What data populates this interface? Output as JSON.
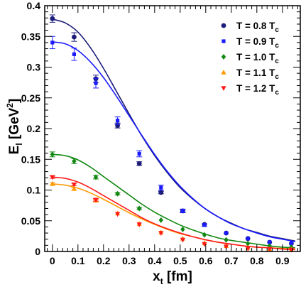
{
  "chart_data": {
    "type": "scatter",
    "xlabel": {
      "main": "x",
      "sub": "t",
      "unit": " [fm]"
    },
    "ylabel": {
      "main": "E",
      "sub": "l",
      "unit_pre": " [GeV",
      "unit_sup": "2",
      "unit_post": "]"
    },
    "xlim": [
      -0.03,
      0.97
    ],
    "ylim": [
      0,
      0.4
    ],
    "x_ticks": [
      "0",
      "0.1",
      "0.2",
      "0.3",
      "0.4",
      "0.5",
      "0.6",
      "0.7",
      "0.8",
      "0.9"
    ],
    "y_ticks": [
      "0",
      "0.05",
      "0.1",
      "0.15",
      "0.2",
      "0.25",
      "0.3",
      "0.35",
      "0.4"
    ],
    "grid": false,
    "legend_position": "top-right",
    "series": [
      {
        "name": {
          "main": "T = 0.8 T",
          "sub": "c"
        },
        "color": "#1c1c7a",
        "marker": "circle",
        "x": [
          0,
          0.085,
          0.17,
          0.255,
          0.34,
          0.425,
          0.51,
          0.595,
          0.68,
          0.765,
          0.85,
          0.935
        ],
        "y": [
          0.379,
          0.349,
          0.281,
          0.205,
          0.143,
          0.096,
          0.066,
          0.044,
          0.03,
          0.021,
          0.015,
          0.013
        ],
        "err": [
          0.006,
          0.007,
          0.006,
          0.004,
          0.003,
          0.002,
          0.002,
          0.001,
          0.001,
          0.001,
          0.001,
          0.001
        ],
        "fit": [
          0.378,
          0.372,
          0.357,
          0.331,
          0.298,
          0.261,
          0.224,
          0.188,
          0.156,
          0.128,
          0.104,
          0.085,
          0.069,
          0.056,
          0.046,
          0.037,
          0.031,
          0.025,
          0.021,
          0.017
        ]
      },
      {
        "name": {
          "main": "T = 0.9 T",
          "sub": "c"
        },
        "color": "#1a1aff",
        "marker": "square",
        "x": [
          0,
          0.085,
          0.17,
          0.255,
          0.34,
          0.425,
          0.51,
          0.595,
          0.68,
          0.765,
          0.85,
          0.935
        ],
        "y": [
          0.34,
          0.321,
          0.274,
          0.213,
          0.159,
          0.104,
          0.066,
          0.043,
          0.03,
          0.021,
          0.015,
          0.013
        ],
        "err": [
          0.01,
          0.01,
          0.008,
          0.006,
          0.005,
          0.004,
          0.003,
          0.002,
          0.001,
          0.001,
          0.001,
          0.001
        ],
        "fit": [
          0.341,
          0.338,
          0.327,
          0.308,
          0.283,
          0.253,
          0.221,
          0.189,
          0.158,
          0.13,
          0.106,
          0.086,
          0.069,
          0.056,
          0.045,
          0.037,
          0.03,
          0.024,
          0.02,
          0.016
        ]
      },
      {
        "name": {
          "main": "T = 1.0 T",
          "sub": "c"
        },
        "color": "#118811",
        "marker": "diamond",
        "x": [
          0,
          0.085,
          0.17,
          0.255,
          0.34,
          0.425,
          0.51,
          0.595,
          0.68,
          0.765,
          0.85,
          0.935
        ],
        "y": [
          0.158,
          0.147,
          0.121,
          0.094,
          0.07,
          0.051,
          0.036,
          0.027,
          0.019,
          0.013,
          0.009,
          0.007
        ],
        "err": [
          0.004,
          0.004,
          0.003,
          0.002,
          0.002,
          0.001,
          0.001,
          0.001,
          0.001,
          0.001,
          0.001,
          0.001
        ],
        "fit": [
          0.158,
          0.156,
          0.149,
          0.137,
          0.122,
          0.107,
          0.092,
          0.077,
          0.064,
          0.053,
          0.043,
          0.035,
          0.028,
          0.022,
          0.018,
          0.015,
          0.012,
          0.009,
          0.007,
          0.006
        ]
      },
      {
        "name": {
          "main": "T = 1.1 T",
          "sub": "c"
        },
        "color": "#ff9900",
        "marker": "triangle-up",
        "x": [
          0,
          0.085,
          0.17,
          0.255,
          0.34,
          0.425,
          0.51,
          0.595,
          0.68,
          0.765,
          0.85,
          0.935
        ],
        "y": [
          0.11,
          0.102,
          0.083,
          0.062,
          0.045,
          0.031,
          0.021,
          0.014,
          0.009,
          0.006,
          0.004,
          0.003
        ],
        "err": [
          0.002,
          0.002,
          0.002,
          0.001,
          0.001,
          0.001,
          0.001,
          0.001,
          0.001,
          0.001,
          0.001,
          0.001
        ],
        "fit": [
          0.11,
          0.108,
          0.103,
          0.095,
          0.085,
          0.074,
          0.063,
          0.053,
          0.044,
          0.036,
          0.029,
          0.024,
          0.019,
          0.015,
          0.012,
          0.009,
          0.007,
          0.006,
          0.005,
          0.004
        ]
      },
      {
        "name": {
          "main": "T = 1.2 T",
          "sub": "c"
        },
        "color": "#ff1a1a",
        "marker": "triangle-down",
        "x": [
          0,
          0.085,
          0.17,
          0.255,
          0.34,
          0.425,
          0.51,
          0.595,
          0.68,
          0.765,
          0.85,
          0.935
        ],
        "y": [
          0.121,
          0.109,
          0.084,
          0.061,
          0.044,
          0.03,
          0.019,
          0.012,
          0.008,
          0.005,
          0.004,
          0.003
        ],
        "err": [
          0.002,
          0.002,
          0.002,
          0.001,
          0.001,
          0.001,
          0.001,
          0.001,
          0.001,
          0.001,
          0.001,
          0.001
        ],
        "fit": [
          0.121,
          0.119,
          0.113,
          0.103,
          0.091,
          0.079,
          0.067,
          0.055,
          0.045,
          0.037,
          0.03,
          0.024,
          0.019,
          0.015,
          0.012,
          0.009,
          0.007,
          0.006,
          0.004,
          0.003
        ]
      }
    ]
  }
}
